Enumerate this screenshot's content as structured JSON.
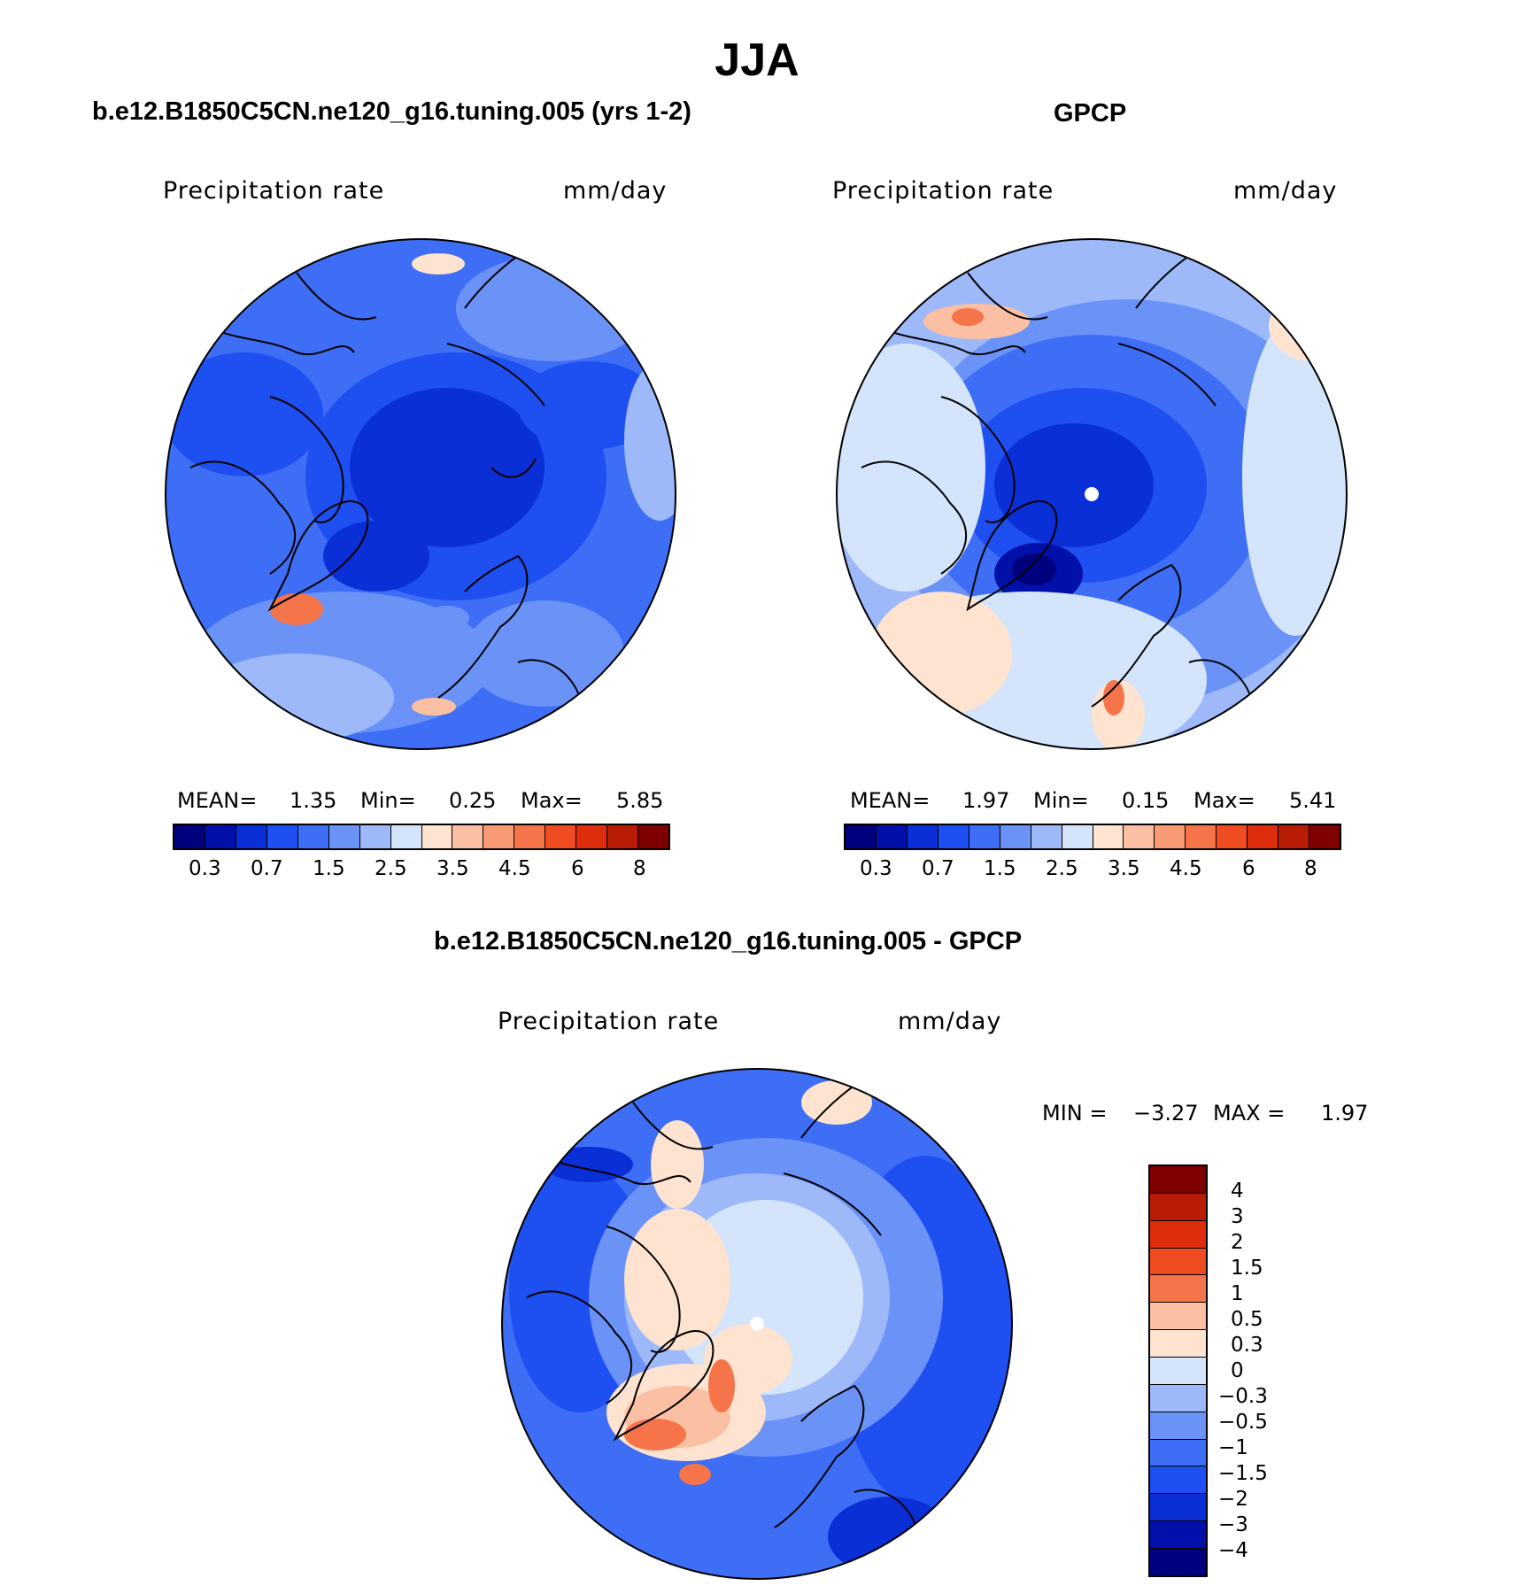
{
  "figure": {
    "season": "JJA"
  },
  "panels": [
    {
      "title": "b.e12.B1850C5CN.ne120_g16.tuning.005 (yrs 1-2)",
      "variable": "Precipitation rate",
      "units": "mm/day",
      "stats": {
        "mean_label": "MEAN=",
        "mean": "1.35",
        "min_label": "Min=",
        "min": "0.25",
        "max_label": "Max=",
        "max": "5.85"
      },
      "colorbar_labels": [
        "0.3",
        "0.7",
        "1.5",
        "2.5",
        "3.5",
        "4.5",
        "6",
        "8"
      ]
    },
    {
      "title": "GPCP",
      "variable": "Precipitation rate",
      "units": "mm/day",
      "stats": {
        "mean_label": "MEAN=",
        "mean": "1.97",
        "min_label": "Min=",
        "min": "0.15",
        "max_label": "Max=",
        "max": "5.41"
      },
      "colorbar_labels": [
        "0.3",
        "0.7",
        "1.5",
        "2.5",
        "3.5",
        "4.5",
        "6",
        "8"
      ]
    },
    {
      "title": "b.e12.B1850C5CN.ne120_g16.tuning.005 - GPCP",
      "variable": "Precipitation rate",
      "units": "mm/day",
      "stats": {
        "min_label": "MIN =",
        "min": "−3.27",
        "max_label": "MAX =",
        "max": "1.97"
      },
      "colorbar_labels": [
        "4",
        "3",
        "2",
        "1.5",
        "1",
        "0.5",
        "0.3",
        "0",
        "−0.3",
        "−0.5",
        "−1",
        "−1.5",
        "−2",
        "−3",
        "−4"
      ]
    }
  ],
  "colors": {
    "abs_scale": [
      "#00007f",
      "#0010a8",
      "#0a2fd6",
      "#1e4ff0",
      "#3d6ef5",
      "#6b92f7",
      "#9db9fa",
      "#d4e5fb",
      "#fde3d0",
      "#fbc0a3",
      "#f89b74",
      "#f5744a",
      "#f04c22",
      "#dd2d0c",
      "#b81c04",
      "#7f0000"
    ],
    "diff_scale": [
      "#7f0000",
      "#b81c04",
      "#dd2d0c",
      "#f04c22",
      "#f5744a",
      "#fbc0a3",
      "#fde3d0",
      "#d4e5fb",
      "#9db9fa",
      "#6b92f7",
      "#3d6ef5",
      "#1e4ff0",
      "#0a2fd6",
      "#0010a8",
      "#00007f"
    ]
  }
}
